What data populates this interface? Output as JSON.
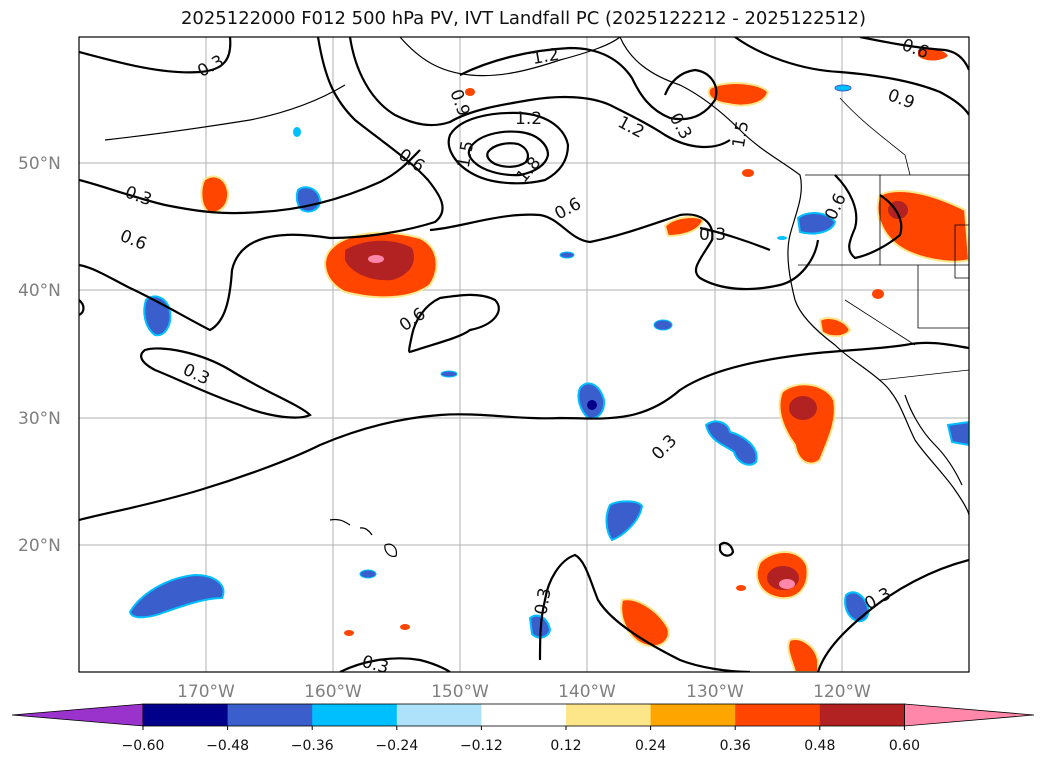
{
  "title": "2025122000 F012 500 hPa PV, IVT Landfall PC (2025122212 - 2025122512)",
  "map": {
    "lon_labels": [
      "170°W",
      "160°W",
      "150°W",
      "140°W",
      "130°W",
      "120°W"
    ],
    "lat_labels": [
      "50°N",
      "40°N",
      "30°N",
      "20°N"
    ],
    "gridlines": true
  },
  "contour_labels": [
    "0.3",
    "0.3",
    "0.6",
    "0.3",
    "0.9",
    "1.2",
    "1.2",
    "1.5",
    "1.8",
    "0.6",
    "0.6",
    "1.2",
    "0.6",
    "0.9",
    "0.3",
    "0.6",
    "0.3",
    "0.3",
    "0.3",
    "0.3",
    "0.6",
    "1.5",
    "0.3"
  ],
  "colorbar": {
    "ticks": [
      "−0.60",
      "−0.48",
      "−0.36",
      "−0.24",
      "−0.12",
      "0.12",
      "0.24",
      "0.36",
      "0.48",
      "0.60"
    ],
    "colors": [
      "#9933cc",
      "#00008b",
      "#3a5fcd",
      "#00bfff",
      "#aee2fa",
      "#ffffff",
      "#fde68a",
      "#ffa500",
      "#ff4500",
      "#b22222",
      "#ff88aa"
    ],
    "extend": "both"
  }
}
